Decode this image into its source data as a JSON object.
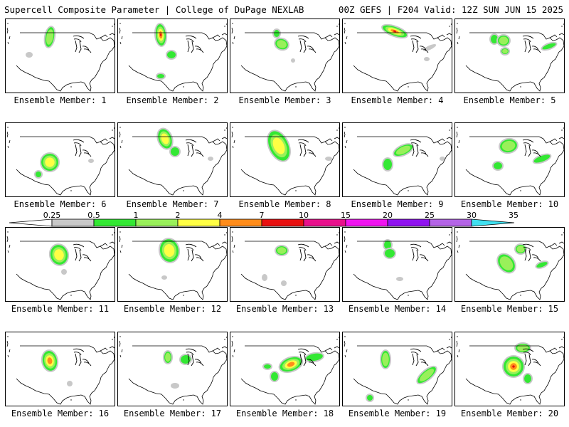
{
  "header": {
    "left_title": "Supercell Composite Parameter | College of DuPage NEXLAB",
    "right_title": "00Z GEFS | F204 Valid: 12Z SUN JUN 15 2025"
  },
  "legend": {
    "breaks": [
      "0.25",
      "0.5",
      "1",
      "2",
      "4",
      "7",
      "10",
      "15",
      "20",
      "25",
      "30",
      "35"
    ],
    "colors": [
      "#c8c8c8",
      "#33e833",
      "#99f05a",
      "#ffff44",
      "#ff8c1a",
      "#e81010",
      "#e8108c",
      "#f014f0",
      "#9012f0",
      "#b464e6",
      "#40e0f0"
    ],
    "low_end_color": "#ffffff"
  },
  "panels": [
    {
      "label": "Ensemble Member: 1"
    },
    {
      "label": "Ensemble Member: 2"
    },
    {
      "label": "Ensemble Member: 3"
    },
    {
      "label": "Ensemble Member: 4"
    },
    {
      "label": "Ensemble Member: 5"
    },
    {
      "label": "Ensemble Member: 6"
    },
    {
      "label": "Ensemble Member: 7"
    },
    {
      "label": "Ensemble Member: 8"
    },
    {
      "label": "Ensemble Member: 9"
    },
    {
      "label": "Ensemble Member: 10"
    },
    {
      "label": "Ensemble Member: 11"
    },
    {
      "label": "Ensemble Member: 12"
    },
    {
      "label": "Ensemble Member: 13"
    },
    {
      "label": "Ensemble Member: 14"
    },
    {
      "label": "Ensemble Member: 15"
    },
    {
      "label": "Ensemble Member: 16"
    },
    {
      "label": "Ensemble Member: 17"
    },
    {
      "label": "Ensemble Member: 18"
    },
    {
      "label": "Ensemble Member: 19"
    },
    {
      "label": "Ensemble Member: 20"
    }
  ]
}
